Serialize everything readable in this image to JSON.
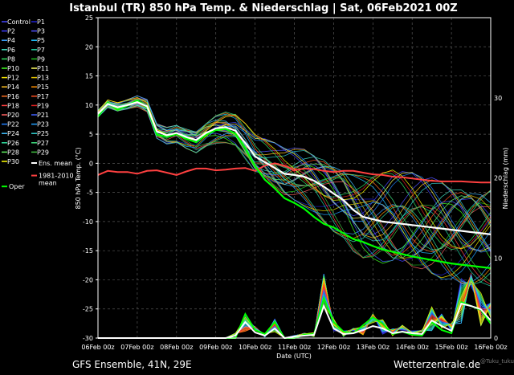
{
  "chart_data": {
    "type": "line",
    "title": "Istanbul  (TR)  850 hPa Temp. & Niederschlag | Sat, 06Feb2021 00Z",
    "xlabel": "Date (UTC)",
    "ylabel": "850 hPa Temp. (°C)",
    "ylabel_right": "Niederschlag (mm)",
    "x_tick_labels": [
      "06Feb 00z",
      "07Feb 00z",
      "08Feb 00z",
      "09Feb 00z",
      "10Feb 00z",
      "11Feb 00z",
      "12Feb 00z",
      "13Feb 00z",
      "14Feb 00z",
      "15Feb 00z",
      "16Feb 00z"
    ],
    "x_hours": [
      0,
      6,
      12,
      18,
      24,
      30,
      36,
      42,
      48,
      54,
      60,
      66,
      72,
      78,
      84,
      90,
      96,
      102,
      108,
      114,
      120,
      126,
      132,
      138,
      144,
      150,
      156,
      162,
      168,
      174,
      180,
      186,
      192,
      198,
      204,
      210,
      216,
      222,
      228,
      234,
      240
    ],
    "ylim": [
      -30,
      25
    ],
    "y_ticks": [
      -30,
      -25,
      -20,
      -15,
      -10,
      -5,
      0,
      5,
      10,
      15,
      20,
      25
    ],
    "y2lim": [
      0,
      40
    ],
    "y2_ticks": [
      0,
      10,
      20,
      30
    ],
    "grid": true,
    "legend_position": "left",
    "legend": [
      "Control",
      "P1",
      "P2",
      "P3",
      "P4",
      "P5",
      "P6",
      "P7",
      "P8",
      "P9",
      "P10",
      "P11",
      "P12",
      "P13",
      "P14",
      "P15",
      "P16",
      "P17",
      "P18",
      "P19",
      "P20",
      "P21",
      "P22",
      "P23",
      "P24",
      "P25",
      "P26",
      "P27",
      "P28",
      "P29",
      "P30",
      "Ens. mean",
      "1981-2010 mean",
      "Oper"
    ],
    "legend_colors": [
      "#4444ff",
      "#2020d0",
      "#3c3cff",
      "#5050ff",
      "#3aa0ff",
      "#20c0ff",
      "#40e0c0",
      "#20d0a0",
      "#30e060",
      "#20c020",
      "#40ff20",
      "#ffff60",
      "#f0e000",
      "#e0c000",
      "#ffc020",
      "#ff9000",
      "#ff7020",
      "#ff5020",
      "#ff4040",
      "#e02020",
      "#ff6060",
      "#4060ff",
      "#2080ff",
      "#20a0ff",
      "#40c0ff",
      "#30d0d0",
      "#30e0a0",
      "#40e080",
      "#60f060",
      "#40c040",
      "#ffff00",
      "#ffffff",
      "#ff4040",
      "#00ff00"
    ],
    "ens_mean": [
      8.5,
      10.2,
      9.6,
      10.0,
      10.5,
      9.8,
      5.5,
      4.8,
      5.2,
      4.5,
      4.0,
      5.2,
      6.0,
      6.2,
      5.6,
      3.5,
      1.2,
      0.2,
      -0.8,
      -1.8,
      -2.0,
      -2.3,
      -3.0,
      -4.0,
      -5.2,
      -6.3,
      -8.0,
      -9.2,
      -9.6,
      -10.0,
      -10.2,
      -10.4,
      -10.6,
      -10.8,
      -11.0,
      -11.2,
      -11.4,
      -11.6,
      -11.8,
      -12.0,
      -12.2
    ],
    "oper": [
      8.0,
      10.4,
      9.2,
      9.9,
      10.8,
      9.6,
      4.9,
      4.6,
      5.0,
      4.2,
      3.6,
      4.9,
      5.7,
      5.9,
      5.1,
      2.6,
      -0.5,
      -2.8,
      -4.3,
      -6.0,
      -6.8,
      -7.8,
      -9.2,
      -10.4,
      -11.0,
      -12.0,
      -13.0,
      -13.5,
      -14.2,
      -14.8,
      -15.2,
      -15.6,
      -16.0,
      -16.3,
      -16.6,
      -16.9,
      -17.2,
      -17.4,
      -17.6,
      -17.8,
      -18.0
    ],
    "climate_mean": [
      -2.0,
      -1.3,
      -1.5,
      -1.5,
      -1.8,
      -1.3,
      -1.2,
      -1.6,
      -2.0,
      -1.4,
      -0.9,
      -0.9,
      -1.2,
      -1.1,
      -0.9,
      -0.8,
      -1.3,
      -0.4,
      0.0,
      -0.4,
      -1.2,
      -0.9,
      -1.0,
      -1.3,
      -1.5,
      -1.3,
      -1.3,
      -1.6,
      -1.9,
      -2.0,
      -2.3,
      -2.4,
      -2.6,
      -2.8,
      -3.0,
      -3.1,
      -3.1,
      -3.1,
      -3.2,
      -3.3,
      -3.3
    ],
    "precip_mean": [
      0,
      0,
      0,
      0,
      0,
      0,
      0,
      0,
      0,
      0,
      0,
      0,
      0,
      0,
      0.3,
      2.0,
      0.7,
      0.3,
      1.2,
      0,
      0.2,
      0.3,
      0.4,
      4.0,
      1.2,
      0.5,
      0.6,
      1.0,
      1.5,
      1.2,
      0.6,
      0.8,
      0.6,
      0.5,
      2.2,
      1.5,
      0.9,
      4.3,
      4.0,
      3.6,
      2.2
    ],
    "precip_oper": [
      0,
      0,
      0,
      0,
      0,
      0,
      0,
      0,
      0,
      0,
      0,
      0,
      0,
      0,
      0,
      3.0,
      1.0,
      0.5,
      2.0,
      0,
      0,
      0.4,
      0.5,
      5.0,
      2.0,
      0.8,
      0.6,
      1.6,
      2.6,
      1.8,
      0.5,
      0.8,
      0.4,
      0.3,
      2.0,
      1.0,
      0.6,
      4.5,
      4.0,
      3.5,
      1.8
    ],
    "members_spread_note": "",
    "footer_left": "GFS Ensemble, 41N, 29E",
    "footer_right": "Wetterzentrale.de",
    "credit": "@Tuku_tuku"
  }
}
